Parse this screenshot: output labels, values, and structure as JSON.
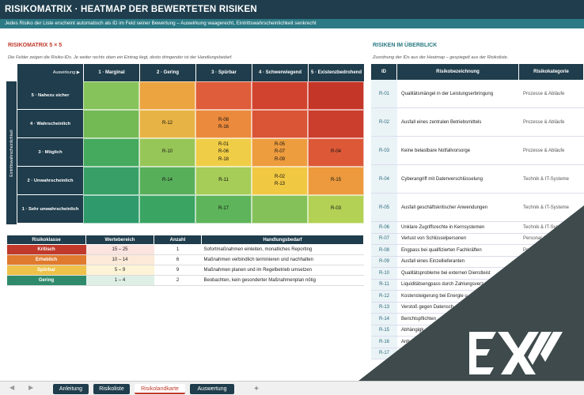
{
  "header": {
    "title": "RISIKOMATRIX  ·  HEATMAP DER BEWERTETEN RISIKEN",
    "subtitle": "Jedes Risiko der Liste erscheint automatisch als ID im Feld seiner Bewertung – Auswirkung waagerecht, Eintrittswahrscheinlichkeit senkrecht"
  },
  "matrix": {
    "title": "RISIKOMATRIX 5 × 5",
    "note": "Die Felder zeigen die Risiko-IDs. Je weiter rechts oben ein Eintrag liegt, desto dringender ist der Handlungsbedarf.",
    "corner": "Auswirkung ▶",
    "cols": [
      "1 · Marginal",
      "2 · Gering",
      "3 · Spürbar",
      "4 · Schwerwiegend",
      "5 · Existenzbedrohend"
    ],
    "vlabel": "Eintrittswahrscheinlichkeit",
    "rows": [
      {
        "label": "5 · Nahezu sicher",
        "cells": [
          "",
          "",
          "",
          "",
          ""
        ],
        "colors": [
          "#86c35a",
          "#eca440",
          "#df5d3a",
          "#d2432f",
          "#c43628"
        ]
      },
      {
        "label": "4 · Wahrscheinlich",
        "cells": [
          "",
          "R-12",
          "R-08\nR-16",
          "",
          ""
        ],
        "colors": [
          "#73ba55",
          "#e8b345",
          "#eb8a3c",
          "#da5436",
          "#cb3d2d"
        ]
      },
      {
        "label": "3 · Möglich",
        "cells": [
          "",
          "R-10",
          "R-01\nR-06\nR-18",
          "R-05\nR-07\nR-09",
          "R-04"
        ],
        "colors": [
          "#45a95e",
          "#97c658",
          "#f0cd47",
          "#ed9c3e",
          "#dd5837"
        ]
      },
      {
        "label": "2 · Unwahrscheinlich",
        "cells": [
          "",
          "R-14",
          "R-11",
          "R-02\nR-13",
          "R-15"
        ],
        "colors": [
          "#38a067",
          "#58af5a",
          "#a6cd58",
          "#f1c842",
          "#ec9a3d"
        ]
      },
      {
        "label": "1 · Sehr unwahrscheinlich",
        "cells": [
          "",
          "",
          "R-17",
          "",
          "R-03"
        ],
        "colors": [
          "#2f9a6b",
          "#3aa463",
          "#5eb45a",
          "#84c158",
          "#b3d155"
        ]
      }
    ]
  },
  "legend": {
    "headers": [
      "Risikoklasse",
      "Wertebereich",
      "Anzahl",
      "Handlungsbedarf"
    ],
    "rows": [
      {
        "cls": "Kritisch",
        "range": "15 – 25",
        "count": "1",
        "action": "Sofortmaßnahmen einleiten, monatliches Reporting",
        "color": "#c0392b",
        "tint": "#fbe3e0"
      },
      {
        "cls": "Erheblich",
        "range": "10 – 14",
        "count": "6",
        "action": "Maßnahmen verbindlich terminieren und nachhalten",
        "color": "#e07a2e",
        "tint": "#fde9d8"
      },
      {
        "cls": "Spürbar",
        "range": "5 – 9",
        "count": "9",
        "action": "Maßnahmen planen und im Regelbetrieb umsetzen",
        "color": "#eec24a",
        "tint": "#fdf3d6"
      },
      {
        "cls": "Gering",
        "range": "1 – 4",
        "count": "2",
        "action": "Beobachten, kein gesonderter Maßnahmenplan nötig",
        "color": "#2f8a6b",
        "tint": "#def0e6"
      }
    ]
  },
  "overview": {
    "title": "RISIKEN IM ÜBERBLICK",
    "note": "Zuordnung der IDs aus der Heatmap – gespiegelt aus der Risikoliste.",
    "headers": [
      "ID",
      "Risikobezeichnung",
      "Risikokategorie"
    ],
    "rows": [
      {
        "id": "R-01",
        "name": "Qualitätsmängel in der Leistungserbringung",
        "cat": "Prozesse & Abläufe"
      },
      {
        "id": "R-02",
        "name": "Ausfall eines zentralen Betriebsmittels",
        "cat": "Prozesse & Abläufe"
      },
      {
        "id": "R-03",
        "name": "Keine belastbare Notfallvorsorge",
        "cat": "Prozesse & Abläufe"
      },
      {
        "id": "R-04",
        "name": "Cyberangriff mit Datenverschlüsselung",
        "cat": "Technik & IT-Systeme"
      },
      {
        "id": "R-05",
        "name": "Ausfall geschäftskritischer Anwendungen",
        "cat": "Technik & IT-Systeme"
      },
      {
        "id": "R-06",
        "name": "Unklare Zugriffsrechte in Kernsystemen",
        "cat": "Technik & IT-Systeme"
      },
      {
        "id": "R-07",
        "name": "Verlust von Schlüsselpersonen",
        "cat": "Personal & Kno"
      },
      {
        "id": "R-08",
        "name": "Engpass bei qualifizierten Fachkräften",
        "cat": "Personal & Kn"
      },
      {
        "id": "R-09",
        "name": "Ausfall eines Einzellieferanten",
        "cat": "Li"
      },
      {
        "id": "R-10",
        "name": "Qualitätsprobleme bei externen Dienstleist",
        "cat": ""
      },
      {
        "id": "R-11",
        "name": "Liquiditätsengpass durch Zahlungsverz",
        "cat": ""
      },
      {
        "id": "R-12",
        "name": "Kostensteigerung bei Energie u",
        "cat": ""
      },
      {
        "id": "R-13",
        "name": "Verstoß gegen Datensch",
        "cat": ""
      },
      {
        "id": "R-14",
        "name": "Berichtspflichten",
        "cat": ""
      },
      {
        "id": "R-15",
        "name": "Abhängigk",
        "cat": ""
      },
      {
        "id": "R-16",
        "name": "Anh",
        "cat": ""
      },
      {
        "id": "R-17",
        "name": "",
        "cat": ""
      }
    ]
  },
  "tabs": {
    "t1": "Anleitung",
    "t2": "Risikoliste",
    "t3": "Risikolandkarte",
    "t4": "Auswertung",
    "add": "+"
  }
}
